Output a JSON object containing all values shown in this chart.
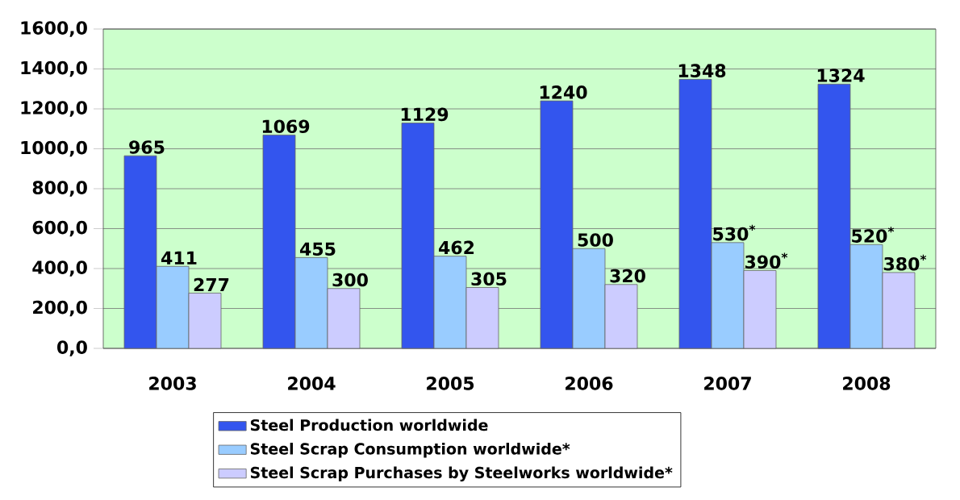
{
  "chart_data": {
    "type": "bar",
    "categories": [
      "2003",
      "2004",
      "2005",
      "2006",
      "2007",
      "2008"
    ],
    "series": [
      {
        "name": "Steel Production worldwide",
        "color": "#3355ee",
        "values": [
          965,
          1069,
          1129,
          1240,
          1348,
          1324
        ],
        "value_labels": [
          "965",
          "1069",
          "1129",
          "1240",
          "1348",
          "1324"
        ]
      },
      {
        "name": "Steel Scrap Consumption worldwide*",
        "color": "#99ccff",
        "values": [
          411,
          455,
          462,
          500,
          530,
          520
        ],
        "value_labels": [
          "411",
          "455",
          "462",
          "500",
          "530$^{*}$",
          "520$^{*}$"
        ]
      },
      {
        "name": "Steel Scrap Purchases by Steelworks worldwide*",
        "color": "#ccccff",
        "values": [
          277,
          300,
          305,
          320,
          390,
          380
        ],
        "value_labels": [
          "277",
          "300",
          "305",
          "320",
          "390$^{*}$",
          "380$^{*}$"
        ]
      }
    ],
    "ylim": [
      0,
      1600
    ],
    "yticks": [
      {
        "value": 0,
        "label": "0,0"
      },
      {
        "value": 200,
        "label": "200,0"
      },
      {
        "value": 400,
        "label": "400,0"
      },
      {
        "value": 600,
        "label": "600,0"
      },
      {
        "value": 800,
        "label": "800,0"
      },
      {
        "value": 1000,
        "label": "1000,0"
      },
      {
        "value": 1200,
        "label": "1200,0"
      },
      {
        "value": 1400,
        "label": "1400,0"
      },
      {
        "value": 1600,
        "label": "1600,0"
      }
    ],
    "grid": "y",
    "legend": "bottom"
  }
}
